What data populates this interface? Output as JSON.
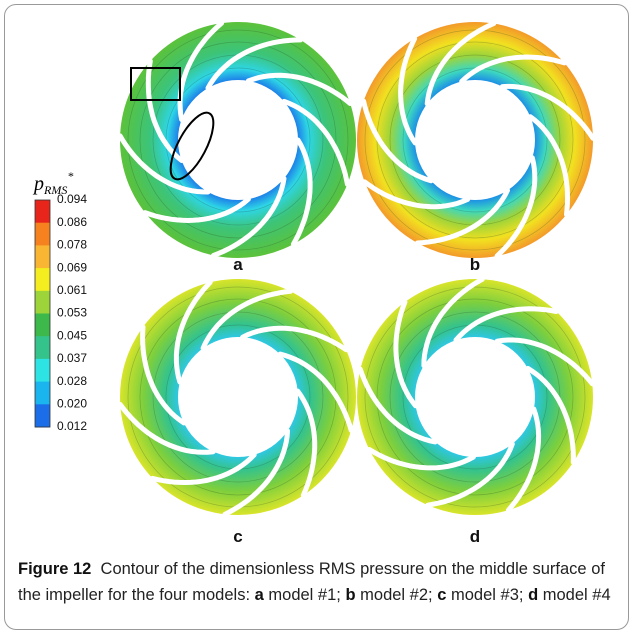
{
  "figure": {
    "colorbar": {
      "title": "p",
      "title_sub": "RMS",
      "title_sup": "*",
      "labels": [
        "0.094",
        "0.086",
        "0.078",
        "0.069",
        "0.061",
        "0.053",
        "0.045",
        "0.037",
        "0.028",
        "0.020",
        "0.012"
      ]
    },
    "panels": [
      {
        "label": "a"
      },
      {
        "label": "b"
      },
      {
        "label": "c"
      },
      {
        "label": "d"
      }
    ]
  },
  "caption": {
    "label": "Figure 12",
    "text": "Contour of the dimensionless RMS pressure on the middle surface of the impeller for the four models:",
    "items": [
      {
        "letter": "a",
        "text": "model #1;"
      },
      {
        "letter": "b",
        "text": "model #2;"
      },
      {
        "letter": "c",
        "text": "model #3;"
      },
      {
        "letter": "d",
        "text": "model #4"
      }
    ]
  }
}
